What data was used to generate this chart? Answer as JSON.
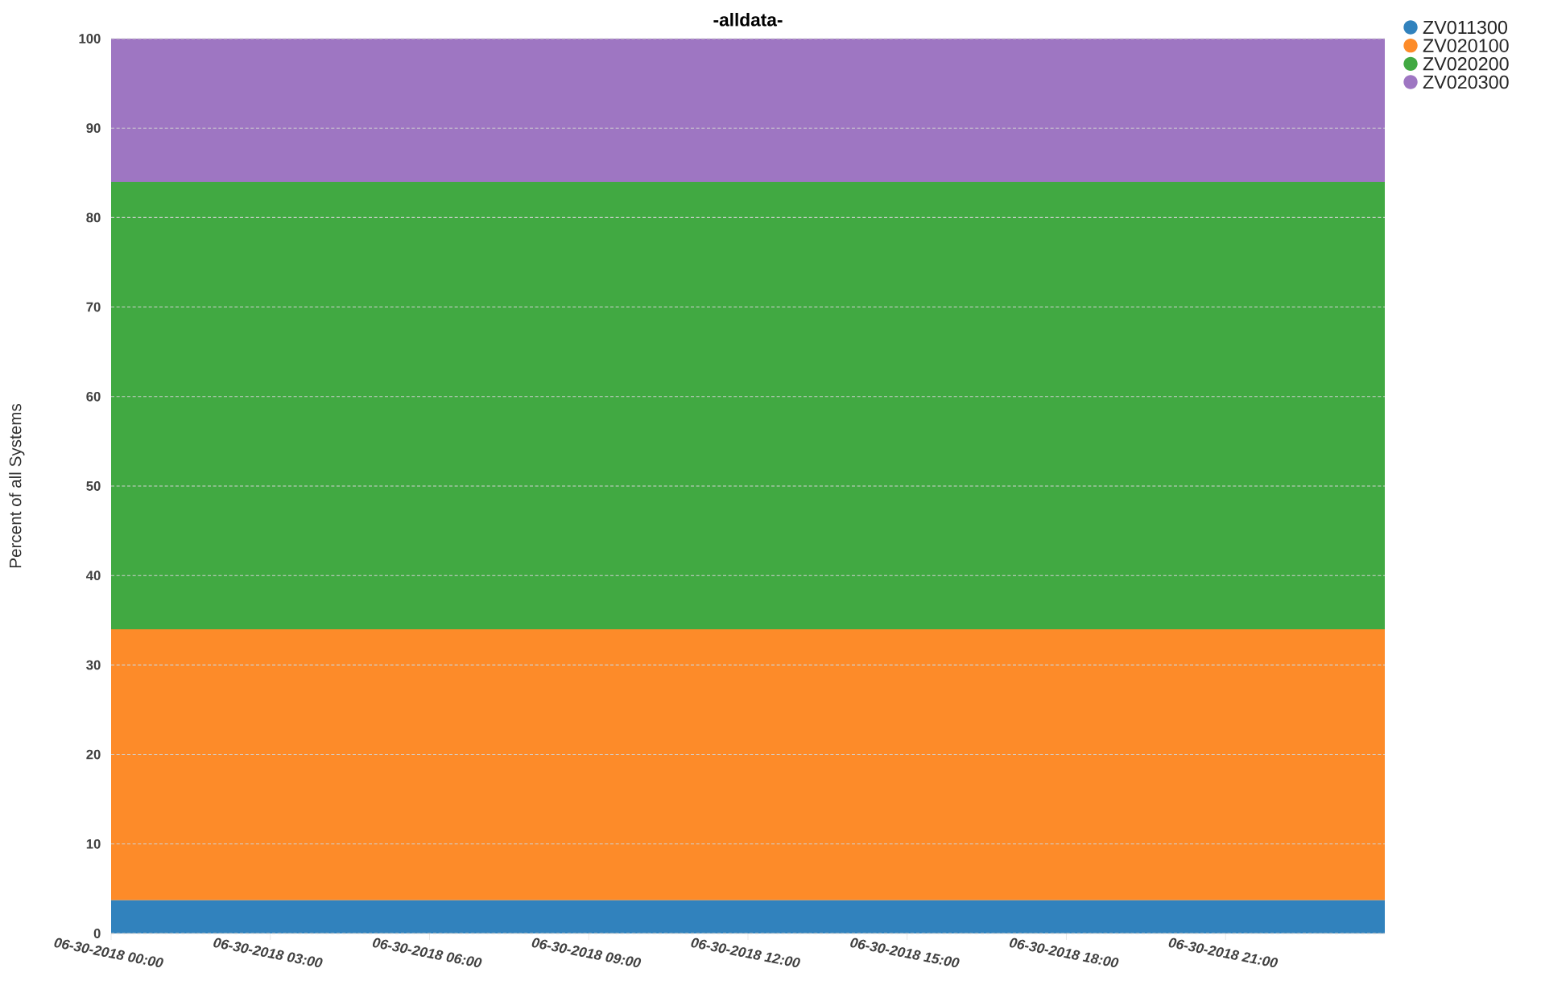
{
  "chart_data": {
    "type": "area",
    "title": "-alldata-",
    "ylabel": "Percent of all Systems",
    "stacked": true,
    "grid": "y",
    "legend": "top right",
    "x": [
      "2018-06-30T00:00",
      "2018-07-01T00:00"
    ],
    "xlim": [
      "2018-06-30T00:00",
      "2018-07-01T00:00"
    ],
    "xticks": [
      {
        "value": "2018-06-30T00:00",
        "label": "06-30-2018 00:00"
      },
      {
        "value": "2018-06-30T03:00",
        "label": "06-30-2018 03:00"
      },
      {
        "value": "2018-06-30T06:00",
        "label": "06-30-2018 06:00"
      },
      {
        "value": "2018-06-30T09:00",
        "label": "06-30-2018 09:00"
      },
      {
        "value": "2018-06-30T12:00",
        "label": "06-30-2018 12:00"
      },
      {
        "value": "2018-06-30T15:00",
        "label": "06-30-2018 15:00"
      },
      {
        "value": "2018-06-30T18:00",
        "label": "06-30-2018 18:00"
      },
      {
        "value": "2018-06-30T21:00",
        "label": "06-30-2018 21:00"
      }
    ],
    "ylim": [
      0,
      100
    ],
    "yticks": [
      0,
      10,
      20,
      30,
      40,
      50,
      60,
      70,
      80,
      90,
      100
    ],
    "series": [
      {
        "name": "ZV011300",
        "color": "#3182bd",
        "values": [
          3.7,
          3.7
        ]
      },
      {
        "name": "ZV020100",
        "color": "#fd8b29",
        "values": [
          30.3,
          30.3
        ]
      },
      {
        "name": "ZV020200",
        "color": "#41a942",
        "values": [
          50.0,
          50.0
        ]
      },
      {
        "name": "ZV020300",
        "color": "#9e76c2",
        "values": [
          16.0,
          16.0
        ]
      }
    ]
  }
}
